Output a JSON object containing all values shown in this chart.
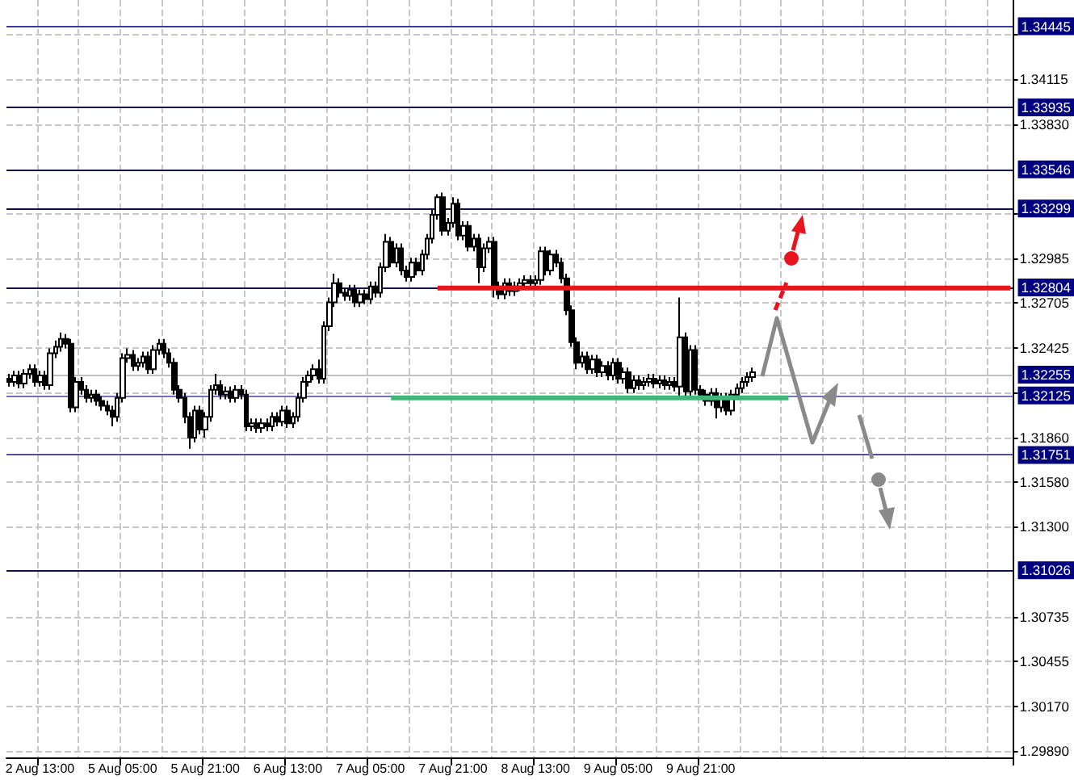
{
  "chart_data": {
    "type": "candlestick",
    "color": "#000000",
    "categories": [
      null,
      null,
      null,
      null,
      null,
      null,
      "2 Aug 13:00",
      null,
      null,
      null,
      null,
      null,
      null,
      null,
      null,
      null,
      null,
      null,
      null,
      null,
      null,
      null,
      "5 Aug 05:00",
      null,
      null,
      null,
      null,
      null,
      null,
      null,
      null,
      null,
      null,
      null,
      null,
      null,
      null,
      null,
      "5 Aug 21:00",
      null,
      null,
      null,
      null,
      null,
      null,
      null,
      null,
      null,
      null,
      null,
      null,
      null,
      null,
      null,
      "6 Aug 13:00",
      null,
      null,
      null,
      null,
      null,
      null,
      null,
      null,
      null,
      null,
      null,
      null,
      null,
      null,
      null,
      "7 Aug 05:00",
      null,
      null,
      null,
      null,
      null,
      null,
      null,
      null,
      null,
      null,
      null,
      null,
      null,
      null,
      null,
      "7 Aug 21:00",
      null,
      null,
      null,
      null,
      null,
      null,
      null,
      null,
      null,
      null,
      null,
      null,
      null,
      null,
      null,
      "8 Aug 13:00",
      null,
      null,
      null,
      null,
      null,
      null,
      null,
      null,
      null,
      null,
      null,
      null,
      null,
      null,
      null,
      "9 Aug 05:00",
      null,
      null,
      null,
      null,
      null,
      null,
      null,
      null,
      null,
      null,
      null,
      null,
      null,
      null,
      null,
      "9 Aug 21:00",
      null,
      null,
      null,
      null,
      null,
      null,
      null,
      null,
      null,
      null,
      null,
      null,
      null,
      null,
      null,
      null,
      null,
      null,
      null,
      null,
      null,
      null,
      null,
      null,
      null,
      null,
      null,
      null,
      null,
      null,
      null,
      null,
      null,
      null,
      null,
      null,
      null,
      null,
      null,
      null,
      null,
      null,
      null,
      null,
      null,
      null,
      null,
      null,
      null,
      null,
      null,
      null,
      null,
      null,
      null,
      null,
      null,
      null,
      null,
      null
    ],
    "ohlc": [
      [
        1.3223,
        1.3226,
        1.3218,
        1.3221
      ],
      [
        1.3221,
        1.3228,
        1.3218,
        1.3225
      ],
      [
        1.3225,
        1.3228,
        1.3217,
        1.322
      ],
      [
        1.322,
        1.3229,
        1.3217,
        1.3226
      ],
      [
        1.3226,
        1.3232,
        1.3223,
        1.3229
      ],
      [
        1.3229,
        1.3232,
        1.3218,
        1.3221
      ],
      [
        1.3221,
        1.3228,
        1.3218,
        1.3225
      ],
      [
        1.3225,
        1.3228,
        1.3216,
        1.3219
      ],
      [
        1.3219,
        1.3242,
        1.3216,
        1.3239
      ],
      [
        1.3239,
        1.3247,
        1.3236,
        1.3243
      ],
      [
        1.3243,
        1.3252,
        1.324,
        1.3248
      ],
      [
        1.3248,
        1.3251,
        1.3242,
        1.3245
      ],
      [
        1.3245,
        1.3248,
        1.3202,
        1.3205
      ],
      [
        1.3205,
        1.3224,
        1.3202,
        1.3221
      ],
      [
        1.3221,
        1.3224,
        1.3213,
        1.3216
      ],
      [
        1.3216,
        1.3219,
        1.3208,
        1.3211
      ],
      [
        1.3211,
        1.3216,
        1.3208,
        1.3213
      ],
      [
        1.3213,
        1.3216,
        1.3206,
        1.3209
      ],
      [
        1.3209,
        1.3212,
        1.3203,
        1.3206
      ],
      [
        1.3206,
        1.3209,
        1.32,
        1.3203
      ],
      [
        1.3203,
        1.3206,
        1.3193,
        1.3199
      ],
      [
        1.3199,
        1.3214,
        1.3196,
        1.3211
      ],
      [
        1.3211,
        1.3239,
        1.3208,
        1.3236
      ],
      [
        1.3236,
        1.3242,
        1.3233,
        1.3238
      ],
      [
        1.3238,
        1.3241,
        1.3228,
        1.3231
      ],
      [
        1.3231,
        1.3236,
        1.3228,
        1.3233
      ],
      [
        1.3233,
        1.324,
        1.323,
        1.3237
      ],
      [
        1.3237,
        1.324,
        1.3226,
        1.3229
      ],
      [
        1.3229,
        1.3244,
        1.3226,
        1.3241
      ],
      [
        1.3241,
        1.3248,
        1.3238,
        1.3245
      ],
      [
        1.3245,
        1.3248,
        1.3236,
        1.3239
      ],
      [
        1.3239,
        1.3242,
        1.323,
        1.3233
      ],
      [
        1.3233,
        1.3236,
        1.3213,
        1.3216
      ],
      [
        1.3216,
        1.3219,
        1.3208,
        1.3211
      ],
      [
        1.3211,
        1.3214,
        1.3195,
        1.3199
      ],
      [
        1.3199,
        1.3202,
        1.3179,
        1.3186
      ],
      [
        1.3186,
        1.3206,
        1.3183,
        1.3203
      ],
      [
        1.3203,
        1.3206,
        1.3188,
        1.3191
      ],
      [
        1.3191,
        1.3202,
        1.3186,
        1.3199
      ],
      [
        1.3199,
        1.3219,
        1.3196,
        1.3216
      ],
      [
        1.3216,
        1.3226,
        1.3213,
        1.3219
      ],
      [
        1.3219,
        1.3222,
        1.321,
        1.3213
      ],
      [
        1.3213,
        1.3218,
        1.321,
        1.3215
      ],
      [
        1.3215,
        1.3218,
        1.3208,
        1.3211
      ],
      [
        1.3211,
        1.3219,
        1.3208,
        1.3216
      ],
      [
        1.3216,
        1.3219,
        1.321,
        1.3213
      ],
      [
        1.3213,
        1.3216,
        1.319,
        1.3193
      ],
      [
        1.3193,
        1.3198,
        1.319,
        1.3195
      ],
      [
        1.3195,
        1.3198,
        1.3189,
        1.3192
      ],
      [
        1.3192,
        1.3198,
        1.3189,
        1.3195
      ],
      [
        1.3195,
        1.3198,
        1.319,
        1.3193
      ],
      [
        1.3193,
        1.3202,
        1.319,
        1.3199
      ],
      [
        1.3199,
        1.3202,
        1.3193,
        1.3196
      ],
      [
        1.3196,
        1.3206,
        1.3193,
        1.3203
      ],
      [
        1.3203,
        1.3206,
        1.3192,
        1.3195
      ],
      [
        1.3195,
        1.3202,
        1.3192,
        1.3199
      ],
      [
        1.3199,
        1.3214,
        1.3196,
        1.3211
      ],
      [
        1.3211,
        1.3224,
        1.3208,
        1.3221
      ],
      [
        1.3221,
        1.3228,
        1.3218,
        1.3225
      ],
      [
        1.3225,
        1.3232,
        1.3222,
        1.3229
      ],
      [
        1.3229,
        1.3235,
        1.322,
        1.3223
      ],
      [
        1.3223,
        1.3259,
        1.322,
        1.3256
      ],
      [
        1.3256,
        1.3274,
        1.3253,
        1.3271
      ],
      [
        1.3271,
        1.3289,
        1.3268,
        1.3283
      ],
      [
        1.3283,
        1.3286,
        1.3274,
        1.3277
      ],
      [
        1.3277,
        1.328,
        1.3272,
        1.3275
      ],
      [
        1.3275,
        1.3282,
        1.3272,
        1.3279
      ],
      [
        1.3279,
        1.3282,
        1.3268,
        1.3271
      ],
      [
        1.3271,
        1.3279,
        1.3268,
        1.3276
      ],
      [
        1.3276,
        1.3279,
        1.327,
        1.3273
      ],
      [
        1.3273,
        1.3284,
        1.327,
        1.3281
      ],
      [
        1.3281,
        1.3284,
        1.3274,
        1.3277
      ],
      [
        1.3277,
        1.3296,
        1.3274,
        1.3293
      ],
      [
        1.3293,
        1.3314,
        1.329,
        1.3309
      ],
      [
        1.3309,
        1.3312,
        1.3293,
        1.3296
      ],
      [
        1.3296,
        1.3308,
        1.3293,
        1.3305
      ],
      [
        1.3305,
        1.3308,
        1.3288,
        1.3291
      ],
      [
        1.3291,
        1.3294,
        1.3284,
        1.3287
      ],
      [
        1.3287,
        1.3299,
        1.3284,
        1.3296
      ],
      [
        1.3296,
        1.3299,
        1.3288,
        1.3291
      ],
      [
        1.3291,
        1.3304,
        1.3288,
        1.3301
      ],
      [
        1.3301,
        1.3314,
        1.3298,
        1.3311
      ],
      [
        1.3311,
        1.3329,
        1.3308,
        1.3326
      ],
      [
        1.3326,
        1.3339,
        1.3323,
        1.3337
      ],
      [
        1.3337,
        1.334,
        1.3313,
        1.3316
      ],
      [
        1.3316,
        1.3324,
        1.3313,
        1.3321
      ],
      [
        1.3321,
        1.3337,
        1.3318,
        1.3333
      ],
      [
        1.3333,
        1.3336,
        1.331,
        1.3313
      ],
      [
        1.3313,
        1.3322,
        1.331,
        1.3319
      ],
      [
        1.3319,
        1.3322,
        1.3303,
        1.3306
      ],
      [
        1.3306,
        1.3314,
        1.3303,
        1.3311
      ],
      [
        1.3311,
        1.3314,
        1.3283,
        1.3293
      ],
      [
        1.3293,
        1.3308,
        1.329,
        1.3305
      ],
      [
        1.3305,
        1.3312,
        1.3302,
        1.3309
      ],
      [
        1.3309,
        1.3312,
        1.3274,
        1.3281
      ],
      [
        1.3281,
        1.3284,
        1.3273,
        1.3276
      ],
      [
        1.3276,
        1.3286,
        1.3273,
        1.3283
      ],
      [
        1.3283,
        1.3286,
        1.3275,
        1.3278
      ],
      [
        1.3278,
        1.3284,
        1.3275,
        1.3281
      ],
      [
        1.3281,
        1.3286,
        1.3278,
        1.3283
      ],
      [
        1.3283,
        1.3288,
        1.328,
        1.3285
      ],
      [
        1.3285,
        1.3288,
        1.328,
        1.3283
      ],
      [
        1.3283,
        1.3288,
        1.328,
        1.3285
      ],
      [
        1.3285,
        1.3306,
        1.3282,
        1.3303
      ],
      [
        1.3303,
        1.3306,
        1.3288,
        1.3291
      ],
      [
        1.3291,
        1.3304,
        1.3288,
        1.3301
      ],
      [
        1.3301,
        1.3304,
        1.3293,
        1.3296
      ],
      [
        1.3296,
        1.3299,
        1.3283,
        1.3286
      ],
      [
        1.3286,
        1.3289,
        1.3263,
        1.3266
      ],
      [
        1.3266,
        1.3269,
        1.3243,
        1.3246
      ],
      [
        1.3246,
        1.3249,
        1.3229,
        1.3233
      ],
      [
        1.3233,
        1.324,
        1.323,
        1.3237
      ],
      [
        1.3237,
        1.324,
        1.3226,
        1.3229
      ],
      [
        1.3229,
        1.3238,
        1.3226,
        1.3235
      ],
      [
        1.3235,
        1.3238,
        1.3224,
        1.3227
      ],
      [
        1.3227,
        1.3234,
        1.3224,
        1.3231
      ],
      [
        1.3231,
        1.3234,
        1.3222,
        1.3225
      ],
      [
        1.3225,
        1.3236,
        1.3222,
        1.3233
      ],
      [
        1.3233,
        1.3236,
        1.322,
        1.3223
      ],
      [
        1.3223,
        1.323,
        1.322,
        1.3227
      ],
      [
        1.3227,
        1.323,
        1.3214,
        1.3217
      ],
      [
        1.3217,
        1.3225,
        1.3214,
        1.3222
      ],
      [
        1.3222,
        1.3225,
        1.3216,
        1.3219
      ],
      [
        1.3219,
        1.3224,
        1.3216,
        1.3221
      ],
      [
        1.3221,
        1.3226,
        1.3218,
        1.3223
      ],
      [
        1.3223,
        1.3226,
        1.3217,
        1.322
      ],
      [
        1.322,
        1.3225,
        1.3217,
        1.3222
      ],
      [
        1.3222,
        1.3225,
        1.3216,
        1.3219
      ],
      [
        1.3219,
        1.3224,
        1.3216,
        1.3221
      ],
      [
        1.3221,
        1.3224,
        1.3215,
        1.3218
      ],
      [
        1.3218,
        1.3274,
        1.3211,
        1.3249
      ],
      [
        1.3249,
        1.3252,
        1.3211,
        1.3215
      ],
      [
        1.3215,
        1.3244,
        1.3212,
        1.3241
      ],
      [
        1.3241,
        1.3244,
        1.3213,
        1.3216
      ],
      [
        1.3216,
        1.3219,
        1.321,
        1.3213
      ],
      [
        1.3213,
        1.3216,
        1.3206,
        1.3209
      ],
      [
        1.3209,
        1.3217,
        1.3206,
        1.3214
      ],
      [
        1.3214,
        1.3217,
        1.3198,
        1.3205
      ],
      [
        1.3205,
        1.3214,
        1.3202,
        1.3211
      ],
      [
        1.3211,
        1.3214,
        1.32,
        1.3203
      ],
      [
        1.3203,
        1.3216,
        1.32,
        1.3213
      ],
      [
        1.3213,
        1.322,
        1.321,
        1.3217
      ],
      [
        1.3217,
        1.3224,
        1.3214,
        1.3221
      ],
      [
        1.3221,
        1.3227,
        1.3218,
        1.3224
      ],
      [
        1.3224,
        1.323,
        1.3221,
        1.3227
      ],
      null,
      null,
      null,
      null,
      null,
      null,
      null,
      null,
      null,
      null,
      null,
      null,
      null,
      null,
      null,
      null,
      null,
      null,
      null,
      null,
      null,
      null,
      null,
      null,
      null,
      null,
      null,
      null,
      null,
      null,
      null,
      null,
      null,
      null,
      null,
      null,
      null,
      null,
      null,
      null,
      null,
      null,
      null,
      null,
      null,
      null,
      null,
      null,
      null,
      null
    ],
    "series": [
      {
        "type": "line",
        "color": "#e8141e",
        "values": [
          null,
          null,
          null,
          null,
          null,
          null,
          null,
          null,
          null,
          null,
          null,
          null,
          null,
          null,
          null,
          null,
          null,
          null,
          null,
          null,
          null,
          null,
          null,
          null,
          null,
          null,
          null,
          null,
          null,
          null,
          null,
          null,
          null,
          null,
          null,
          null,
          null,
          null,
          null,
          null,
          null,
          null,
          null,
          null,
          null,
          null,
          null,
          null,
          null,
          null,
          null,
          null,
          null,
          null,
          null,
          null,
          null,
          null,
          null,
          null,
          null,
          null,
          null,
          null,
          null,
          null,
          null,
          null,
          null,
          null,
          null,
          null,
          null,
          null,
          null,
          null,
          null,
          null,
          null,
          null,
          null,
          null,
          null,
          1.328,
          1.328,
          1.328,
          1.328,
          1.328,
          1.328,
          1.328,
          1.328,
          1.328,
          1.328,
          1.328,
          1.328,
          1.328,
          1.328,
          1.328,
          1.328,
          1.328,
          1.328,
          1.328,
          1.328,
          1.328,
          1.328,
          1.328,
          1.328,
          1.328,
          1.328,
          1.328,
          1.328,
          1.328,
          1.328,
          1.328,
          1.328,
          1.328,
          1.328,
          1.328,
          1.328,
          1.328,
          1.328,
          1.328,
          1.328,
          1.328,
          1.328,
          1.328,
          1.328,
          1.328,
          1.328,
          1.328,
          1.328,
          1.328,
          1.328,
          1.328,
          1.328,
          1.328,
          1.328,
          1.328,
          1.328,
          1.328,
          1.328,
          1.328,
          1.328,
          1.328,
          1.328,
          1.328,
          1.328,
          1.328,
          1.328,
          1.328,
          1.328,
          1.328,
          1.328,
          1.328,
          1.328,
          1.328,
          1.328,
          1.328,
          1.328,
          1.328,
          1.328,
          1.328,
          1.328,
          1.328,
          1.328,
          1.328,
          1.328,
          1.328,
          1.328,
          1.328,
          1.328,
          1.328,
          1.328,
          1.328,
          1.328,
          1.328,
          1.328,
          1.328,
          1.328,
          1.328,
          1.328,
          1.328,
          1.328,
          1.328,
          1.328,
          1.328,
          1.328,
          1.328,
          1.328,
          1.328,
          1.328,
          1.328,
          1.328,
          1.328,
          1.328
        ]
      },
      {
        "type": "line",
        "color": "#3cb878",
        "values": [
          null,
          null,
          null,
          null,
          null,
          null,
          null,
          null,
          null,
          null,
          null,
          null,
          null,
          null,
          null,
          null,
          null,
          null,
          null,
          null,
          null,
          null,
          null,
          null,
          null,
          null,
          null,
          null,
          null,
          null,
          null,
          null,
          null,
          null,
          null,
          null,
          null,
          null,
          null,
          null,
          null,
          null,
          null,
          null,
          null,
          null,
          null,
          null,
          null,
          null,
          null,
          null,
          null,
          null,
          null,
          null,
          null,
          null,
          null,
          null,
          null,
          null,
          null,
          null,
          null,
          null,
          null,
          null,
          null,
          null,
          null,
          null,
          null,
          null,
          1.3211,
          1.3211,
          1.3211,
          1.3211,
          1.3211,
          1.3211,
          1.3211,
          1.3211,
          1.3211,
          1.3211,
          1.3211,
          1.3211,
          1.3211,
          1.3211,
          1.3211,
          1.3211,
          1.3211,
          1.3211,
          1.3211,
          1.3211,
          1.3211,
          1.3211,
          1.3211,
          1.3211,
          1.3211,
          1.3211,
          1.3211,
          1.3211,
          1.3211,
          1.3211,
          1.3211,
          1.3211,
          1.3211,
          1.3211,
          1.3211,
          1.3211,
          1.3211,
          1.3211,
          1.3211,
          1.3211,
          1.3211,
          1.3211,
          1.3211,
          1.3211,
          1.3211,
          1.3211,
          1.3211,
          1.3211,
          1.3211,
          1.3211,
          1.3211,
          1.3211,
          1.3211,
          1.3211,
          1.3211,
          1.3211,
          1.3211,
          1.3211,
          1.3211,
          1.3211,
          1.3211,
          1.3211,
          1.3211,
          1.3211,
          1.3211,
          1.3211,
          1.3211,
          1.3211,
          1.3211,
          1.3211,
          1.3211,
          1.3211,
          1.3211,
          1.3211,
          1.3211,
          1.3211,
          1.3211,
          1.3211,
          null,
          null,
          null,
          null,
          null,
          null,
          null,
          null,
          null,
          null,
          null,
          null,
          null,
          null,
          null,
          null,
          null,
          null,
          null,
          null,
          null,
          null,
          null,
          null,
          null,
          null,
          null,
          null,
          null,
          null,
          null,
          null,
          null,
          null,
          null,
          null,
          null,
          null,
          null,
          null,
          null,
          null,
          null
        ]
      }
    ],
    "ylim": [
      1.2985,
      1.3461
    ],
    "yticks": [
      {
        "value": 1.2989,
        "label": "1.29890"
      },
      {
        "value": 1.3017,
        "label": "1.30170"
      },
      {
        "value": 1.30455,
        "label": "1.30455"
      },
      {
        "value": 1.30735,
        "label": "1.30735"
      },
      {
        "value": 1.313,
        "label": "1.31300"
      },
      {
        "value": 1.3158,
        "label": "1.31580"
      },
      {
        "value": 1.3186,
        "label": "1.31860"
      },
      {
        "value": 1.3214,
        "label": null
      },
      {
        "value": 1.32425,
        "label": "1.32425"
      },
      {
        "value": 1.32705,
        "label": "1.32705"
      },
      {
        "value": 1.32985,
        "label": "1.32985"
      },
      {
        "value": 1.3327,
        "label": null
      },
      {
        "value": 1.3383,
        "label": "1.33830"
      },
      {
        "value": 1.34115,
        "label": "1.34115"
      },
      {
        "value": 1.34395,
        "label": null
      }
    ],
    "ref_lines": [
      {
        "axis": "y",
        "value": 1.34445,
        "label": "1.34445",
        "color": "#3a3aa0"
      },
      {
        "axis": "y",
        "value": 1.33935,
        "label": "1.33935",
        "color": "#101050"
      },
      {
        "axis": "y",
        "value": 1.33546,
        "label": "1.33546",
        "color": "#101050"
      },
      {
        "axis": "y",
        "value": 1.33299,
        "label": "1.33299",
        "color": "#101050"
      },
      {
        "axis": "y",
        "value": 1.32804,
        "label": "1.32804",
        "color": "#101050"
      },
      {
        "axis": "y",
        "value": 1.32255,
        "label": "1.32255",
        "color": "#c0c0c0"
      },
      {
        "axis": "y",
        "value": 1.32125,
        "label": "1.32125",
        "color": "#7070c8"
      },
      {
        "axis": "y",
        "value": 1.31751,
        "label": "1.31751",
        "color": "#5050a8"
      },
      {
        "axis": "y",
        "value": 1.31026,
        "label": "1.31026",
        "color": "#101050"
      }
    ],
    "grid": true
  }
}
